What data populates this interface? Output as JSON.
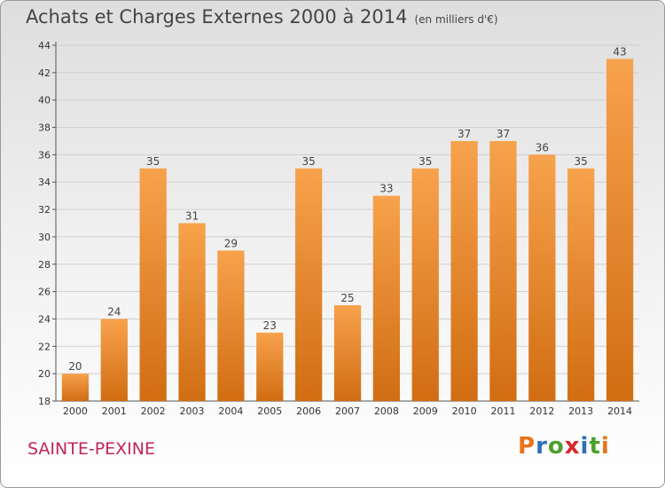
{
  "header": {
    "title": "Achats et Charges Externes 2000 à 2014",
    "unit": "(en milliers d'€)"
  },
  "footer": {
    "place": "SAINTE-PEXINE",
    "logo": "Proxiti",
    "logo_colors": [
      "#e8731b",
      "#2e6fb5",
      "#4aa12c",
      "#d8262c",
      "#2e6fb5",
      "#4aa12c",
      "#e8731b"
    ]
  },
  "colors": {
    "bar_light": "#f7a24c",
    "bar_dark": "#d16d12",
    "grid": "#cfcfcf",
    "axis": "#555555"
  },
  "chart_data": {
    "type": "bar",
    "title": "Achats et Charges Externes 2000 à 2014",
    "xlabel": "",
    "ylabel": "",
    "categories": [
      "2000",
      "2001",
      "2002",
      "2003",
      "2004",
      "2005",
      "2006",
      "2007",
      "2008",
      "2009",
      "2010",
      "2011",
      "2012",
      "2013",
      "2014"
    ],
    "values": [
      20,
      24,
      35,
      31,
      29,
      23,
      35,
      25,
      33,
      35,
      37,
      37,
      36,
      35,
      43
    ],
    "ylim": [
      18,
      44
    ],
    "yticks": [
      18,
      20,
      22,
      24,
      26,
      28,
      30,
      32,
      34,
      36,
      38,
      40,
      42,
      44
    ],
    "grid": true,
    "legend": "none"
  }
}
